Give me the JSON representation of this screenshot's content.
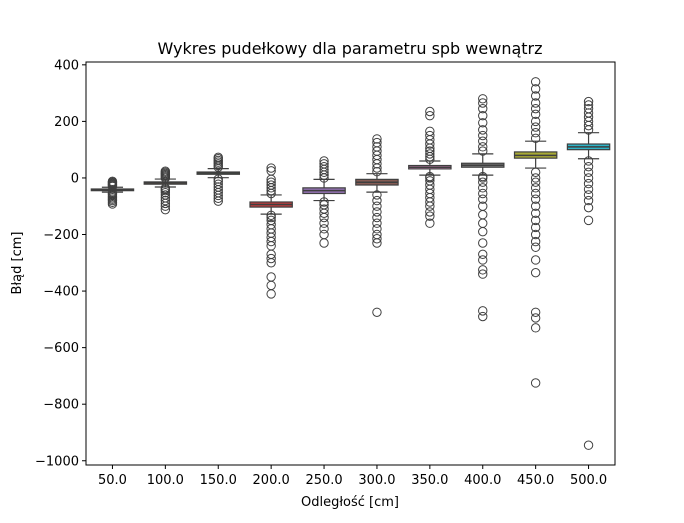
{
  "chart_data": {
    "type": "box",
    "title": "Wykres pudełkowy dla parametru spb wewnątrz",
    "xlabel": "Odległość [cm]",
    "ylabel": "Błąd [cm]",
    "ylim": [
      -1015,
      410
    ],
    "yticks": [
      400,
      200,
      0,
      -200,
      -400,
      -600,
      -800,
      -1000
    ],
    "ytick_labels": [
      "400",
      "200",
      "0",
      "−200",
      "−400",
      "−600",
      "−800",
      "−1000"
    ],
    "grid": false,
    "legend": "none",
    "categories": [
      "50.0",
      "100.0",
      "150.0",
      "200.0",
      "250.0",
      "300.0",
      "350.0",
      "400.0",
      "450.0",
      "500.0"
    ],
    "boxes": [
      {
        "category": "50.0",
        "color": "#3a73b8",
        "q1": -45,
        "median": -42,
        "q3": -39,
        "whisker_low": -50,
        "whisker_high": -33,
        "outliers": [
          -92,
          -86,
          -80,
          -75,
          -70,
          -65,
          -60,
          -56,
          -53,
          -30,
          -27,
          -24,
          -21,
          -18,
          -15,
          -12
        ]
      },
      {
        "category": "100.0",
        "color": "#e1812c",
        "q1": -22,
        "median": -18,
        "q3": -14,
        "whisker_low": -32,
        "whisker_high": -4,
        "outliers": [
          -112,
          -100,
          -90,
          -80,
          -70,
          -60,
          -52,
          -45,
          -40,
          -36,
          0,
          4,
          8,
          12,
          16,
          20,
          24
        ]
      },
      {
        "category": "150.0",
        "color": "#3a923a",
        "q1": 13,
        "median": 17,
        "q3": 21,
        "whisker_low": 1,
        "whisker_high": 33,
        "outliers": [
          -82,
          -72,
          -62,
          -52,
          -42,
          -32,
          -22,
          -12,
          -4,
          38,
          44,
          50,
          56,
          62,
          68,
          73
        ]
      },
      {
        "category": "200.0",
        "color": "#c03d3e",
        "q1": -103,
        "median": -94,
        "q3": -85,
        "whisker_low": -128,
        "whisker_high": -60,
        "outliers": [
          -410,
          -380,
          -350,
          -300,
          -285,
          -270,
          -240,
          -225,
          -210,
          -195,
          -180,
          -165,
          -150,
          -140,
          -132,
          -55,
          -45,
          -35,
          -25,
          -15,
          -5,
          25,
          35
        ]
      },
      {
        "category": "250.0",
        "color": "#9372b2",
        "q1": -55,
        "median": -45,
        "q3": -35,
        "whisker_low": -80,
        "whisker_high": -5,
        "outliers": [
          -230,
          -200,
          -180,
          -160,
          -140,
          -125,
          -110,
          -95,
          -85,
          0,
          10,
          20,
          30,
          40,
          50,
          60
        ]
      },
      {
        "category": "300.0",
        "color": "#845b53",
        "q1": -25,
        "median": -15,
        "q3": -5,
        "whisker_low": -50,
        "whisker_high": 15,
        "outliers": [
          -475,
          -230,
          -215,
          -200,
          -180,
          -160,
          -140,
          -120,
          -100,
          -80,
          -60,
          22,
          35,
          50,
          65,
          80,
          95,
          110,
          125,
          138
        ]
      },
      {
        "category": "350.0",
        "color": "#d684bd",
        "q1": 32,
        "median": 38,
        "q3": 44,
        "whisker_low": 10,
        "whisker_high": 60,
        "outliers": [
          -160,
          -135,
          -120,
          -100,
          -85,
          -70,
          -55,
          -40,
          -25,
          -10,
          0,
          5,
          66,
          75,
          85,
          95,
          105,
          120,
          135,
          150,
          165,
          220,
          235
        ]
      },
      {
        "category": "400.0",
        "color": "#7f7f7f",
        "q1": 38,
        "median": 45,
        "q3": 52,
        "whisker_low": 10,
        "whisker_high": 85,
        "outliers": [
          -490,
          -470,
          -340,
          -325,
          -290,
          -270,
          -230,
          -190,
          -160,
          -130,
          -100,
          -75,
          -55,
          -35,
          -15,
          0,
          5,
          95,
          110,
          130,
          150,
          170,
          195,
          220,
          245,
          265,
          280
        ]
      },
      {
        "category": "450.0",
        "color": "#a9aa35",
        "q1": 70,
        "median": 80,
        "q3": 92,
        "whisker_low": 35,
        "whisker_high": 130,
        "outliers": [
          -725,
          -530,
          -495,
          -475,
          -335,
          -290,
          -245,
          -225,
          -200,
          -175,
          -150,
          -125,
          -100,
          -75,
          -55,
          -35,
          -15,
          0,
          20,
          140,
          160,
          180,
          200,
          225,
          245,
          265,
          290,
          315,
          340
        ]
      },
      {
        "category": "500.0",
        "color": "#2eb4c8",
        "q1": 100,
        "median": 110,
        "q3": 120,
        "whisker_low": 68,
        "whisker_high": 160,
        "outliers": [
          -945,
          -150,
          -105,
          -80,
          -60,
          -40,
          -20,
          0,
          20,
          40,
          60,
          170,
          185,
          200,
          215,
          230,
          245,
          258,
          270
        ]
      }
    ]
  }
}
